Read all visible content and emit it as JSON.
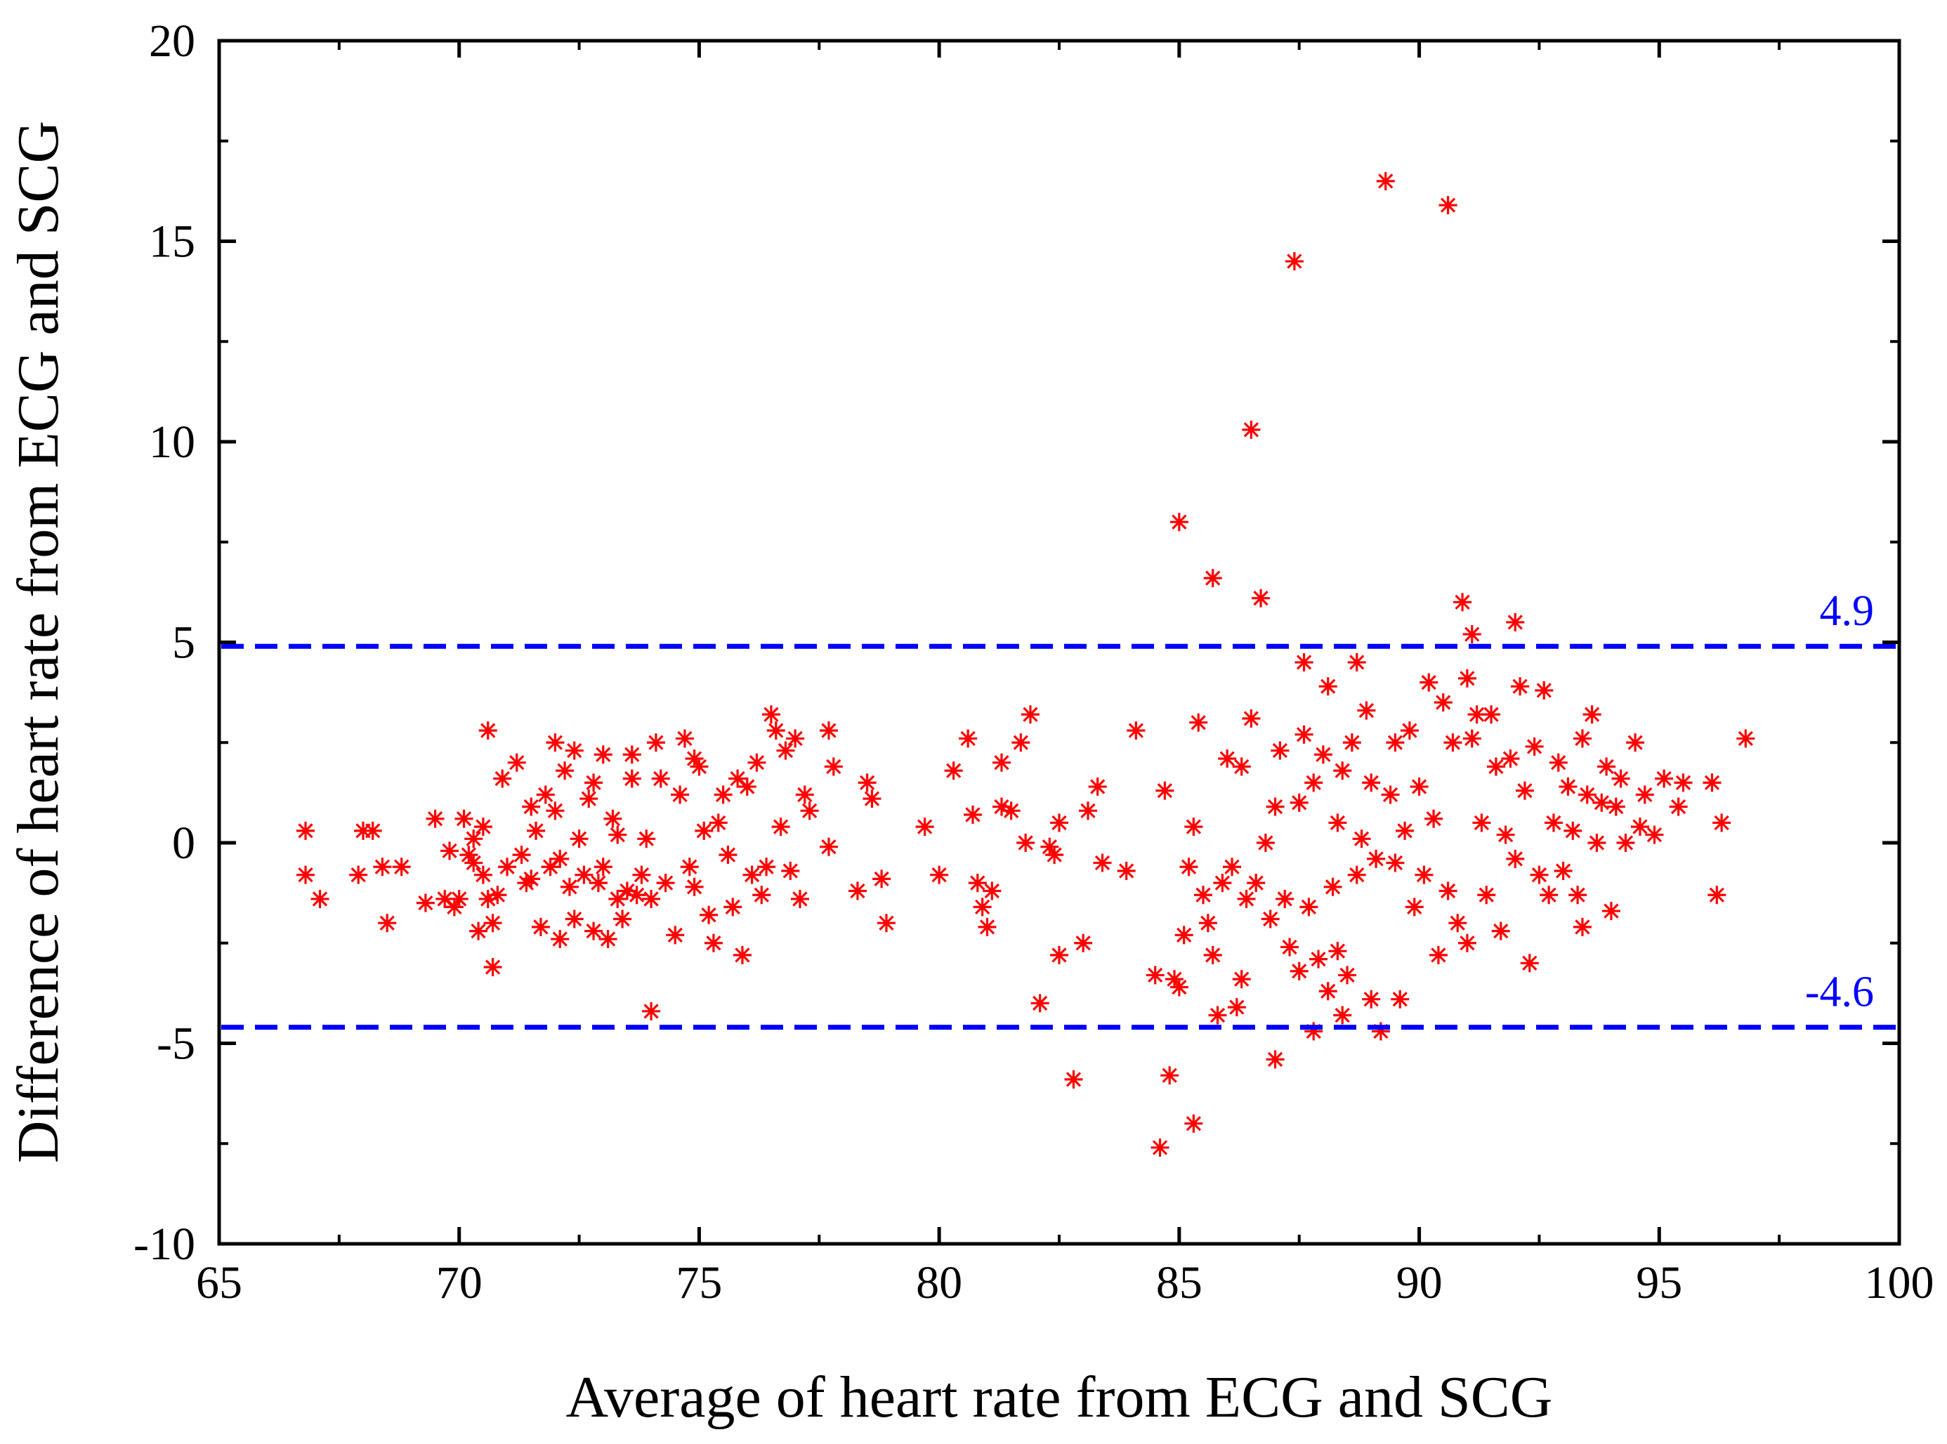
{
  "chart_data": {
    "type": "scatter",
    "title": "",
    "xlabel": "Average of heart rate from ECG and SCG",
    "ylabel": "Difference of heart rate from ECG and SCG",
    "xlim": [
      65,
      100
    ],
    "ylim": [
      -10,
      20
    ],
    "xticks": [
      65,
      70,
      75,
      80,
      85,
      90,
      95,
      100
    ],
    "yticks": [
      -10,
      -5,
      0,
      5,
      10,
      15,
      20
    ],
    "marker": "asterisk",
    "colors": {
      "points": "#ff0000",
      "limits": "#0000ff",
      "axes": "#000000"
    },
    "reference_lines": [
      {
        "name": "upper-limit",
        "y": 4.9,
        "label": "4.9",
        "style": "dashed"
      },
      {
        "name": "lower-limit",
        "y": -4.6,
        "label": "-4.6",
        "style": "dashed"
      }
    ],
    "series": [
      {
        "name": "differences",
        "points": [
          [
            66.8,
            0.3
          ],
          [
            66.8,
            -0.8
          ],
          [
            67.1,
            -1.4
          ],
          [
            67.9,
            -0.8
          ],
          [
            68.0,
            0.3
          ],
          [
            68.2,
            0.3
          ],
          [
            68.4,
            -0.6
          ],
          [
            68.5,
            -2.0
          ],
          [
            68.8,
            -0.6
          ],
          [
            69.3,
            -1.5
          ],
          [
            69.5,
            0.6
          ],
          [
            69.7,
            -1.4
          ],
          [
            69.8,
            -0.2
          ],
          [
            69.9,
            -1.6
          ],
          [
            70.0,
            -1.4
          ],
          [
            70.1,
            0.6
          ],
          [
            70.2,
            -0.3
          ],
          [
            70.3,
            -0.5
          ],
          [
            70.3,
            0.1
          ],
          [
            70.4,
            -2.2
          ],
          [
            70.5,
            -0.8
          ],
          [
            70.5,
            0.4
          ],
          [
            70.6,
            -1.4
          ],
          [
            70.6,
            2.8
          ],
          [
            70.7,
            -2.0
          ],
          [
            70.7,
            -3.1
          ],
          [
            70.8,
            -1.3
          ],
          [
            70.9,
            1.6
          ],
          [
            71.0,
            -0.6
          ],
          [
            71.2,
            2.0
          ],
          [
            71.3,
            -0.3
          ],
          [
            71.4,
            -1.0
          ],
          [
            71.5,
            -0.9
          ],
          [
            71.5,
            0.9
          ],
          [
            71.6,
            0.3
          ],
          [
            71.7,
            -2.1
          ],
          [
            71.8,
            1.2
          ],
          [
            71.9,
            -0.6
          ],
          [
            72.0,
            0.8
          ],
          [
            72.0,
            2.5
          ],
          [
            72.1,
            -2.4
          ],
          [
            72.1,
            -0.4
          ],
          [
            72.2,
            1.8
          ],
          [
            72.3,
            -1.1
          ],
          [
            72.4,
            2.3
          ],
          [
            72.4,
            -1.9
          ],
          [
            72.5,
            0.1
          ],
          [
            72.6,
            -0.8
          ],
          [
            72.7,
            1.1
          ],
          [
            72.8,
            1.5
          ],
          [
            72.8,
            -2.2
          ],
          [
            72.9,
            -1.0
          ],
          [
            73.0,
            2.2
          ],
          [
            73.0,
            -0.6
          ],
          [
            73.1,
            -2.4
          ],
          [
            73.2,
            0.6
          ],
          [
            73.3,
            -1.4
          ],
          [
            73.3,
            0.2
          ],
          [
            73.4,
            -1.9
          ],
          [
            73.5,
            -1.2
          ],
          [
            73.6,
            2.2
          ],
          [
            73.6,
            1.6
          ],
          [
            73.7,
            -1.3
          ],
          [
            73.8,
            -0.8
          ],
          [
            73.9,
            0.1
          ],
          [
            74.0,
            -1.4
          ],
          [
            74.0,
            -4.2
          ],
          [
            74.1,
            2.5
          ],
          [
            74.2,
            1.6
          ],
          [
            74.3,
            -1.0
          ],
          [
            74.5,
            -2.3
          ],
          [
            74.6,
            1.2
          ],
          [
            74.7,
            2.6
          ],
          [
            74.8,
            -0.6
          ],
          [
            74.9,
            2.1
          ],
          [
            74.9,
            -1.1
          ],
          [
            75.0,
            1.9
          ],
          [
            75.1,
            0.3
          ],
          [
            75.2,
            -1.8
          ],
          [
            75.3,
            -2.5
          ],
          [
            75.4,
            0.5
          ],
          [
            75.5,
            1.2
          ],
          [
            75.6,
            -0.3
          ],
          [
            75.7,
            -1.6
          ],
          [
            75.8,
            1.6
          ],
          [
            75.9,
            -2.8
          ],
          [
            76.0,
            1.4
          ],
          [
            76.1,
            -0.8
          ],
          [
            76.2,
            2.0
          ],
          [
            76.3,
            -1.3
          ],
          [
            76.4,
            -0.6
          ],
          [
            76.5,
            3.2
          ],
          [
            76.6,
            2.8
          ],
          [
            76.7,
            0.4
          ],
          [
            76.8,
            2.3
          ],
          [
            76.9,
            -0.7
          ],
          [
            77.0,
            2.6
          ],
          [
            77.1,
            -1.4
          ],
          [
            77.2,
            1.2
          ],
          [
            77.3,
            0.8
          ],
          [
            77.7,
            2.8
          ],
          [
            77.7,
            -0.1
          ],
          [
            77.8,
            1.9
          ],
          [
            78.3,
            -1.2
          ],
          [
            78.5,
            1.5
          ],
          [
            78.6,
            1.1
          ],
          [
            78.8,
            -0.9
          ],
          [
            78.9,
            -2.0
          ],
          [
            79.7,
            0.4
          ],
          [
            80.0,
            -0.8
          ],
          [
            80.3,
            1.8
          ],
          [
            80.6,
            2.6
          ],
          [
            80.7,
            0.7
          ],
          [
            80.8,
            -1.0
          ],
          [
            80.9,
            -1.6
          ],
          [
            81.0,
            -2.1
          ],
          [
            81.1,
            -1.2
          ],
          [
            81.3,
            2.0
          ],
          [
            81.3,
            0.9
          ],
          [
            81.5,
            0.8
          ],
          [
            81.7,
            2.5
          ],
          [
            81.8,
            0.0
          ],
          [
            81.9,
            3.2
          ],
          [
            82.1,
            -4.0
          ],
          [
            82.3,
            -0.1
          ],
          [
            82.4,
            -0.3
          ],
          [
            82.5,
            0.5
          ],
          [
            82.5,
            -2.8
          ],
          [
            82.8,
            -5.9
          ],
          [
            83.0,
            -2.5
          ],
          [
            83.1,
            0.8
          ],
          [
            83.3,
            1.4
          ],
          [
            83.4,
            -0.5
          ],
          [
            83.9,
            -0.7
          ],
          [
            84.1,
            2.8
          ],
          [
            84.5,
            -3.3
          ],
          [
            84.6,
            -7.6
          ],
          [
            84.7,
            1.3
          ],
          [
            84.8,
            -5.8
          ],
          [
            84.9,
            -3.4
          ],
          [
            85.0,
            -3.6
          ],
          [
            85.0,
            8.0
          ],
          [
            85.1,
            -2.3
          ],
          [
            85.2,
            -0.6
          ],
          [
            85.3,
            0.4
          ],
          [
            85.3,
            -7.0
          ],
          [
            85.4,
            3.0
          ],
          [
            85.5,
            -1.3
          ],
          [
            85.6,
            -2.0
          ],
          [
            85.7,
            6.6
          ],
          [
            85.7,
            -2.8
          ],
          [
            85.8,
            -4.3
          ],
          [
            85.9,
            -1.0
          ],
          [
            86.0,
            2.1
          ],
          [
            86.1,
            -0.6
          ],
          [
            86.2,
            -4.1
          ],
          [
            86.3,
            1.9
          ],
          [
            86.3,
            -3.4
          ],
          [
            86.4,
            -1.4
          ],
          [
            86.5,
            10.3
          ],
          [
            86.5,
            3.1
          ],
          [
            86.6,
            -1.0
          ],
          [
            86.7,
            6.1
          ],
          [
            86.8,
            0.0
          ],
          [
            86.9,
            -1.9
          ],
          [
            87.0,
            0.9
          ],
          [
            87.0,
            -5.4
          ],
          [
            87.1,
            2.3
          ],
          [
            87.2,
            -1.4
          ],
          [
            87.3,
            -2.6
          ],
          [
            87.4,
            14.5
          ],
          [
            87.5,
            1.0
          ],
          [
            87.5,
            -3.2
          ],
          [
            87.6,
            4.5
          ],
          [
            87.6,
            2.7
          ],
          [
            87.7,
            -1.6
          ],
          [
            87.8,
            -4.7
          ],
          [
            87.8,
            1.5
          ],
          [
            87.9,
            -2.9
          ],
          [
            88.0,
            2.2
          ],
          [
            88.1,
            -3.7
          ],
          [
            88.1,
            3.9
          ],
          [
            88.2,
            -1.1
          ],
          [
            88.3,
            0.5
          ],
          [
            88.3,
            -2.7
          ],
          [
            88.4,
            1.8
          ],
          [
            88.4,
            -4.3
          ],
          [
            88.5,
            -3.3
          ],
          [
            88.6,
            2.5
          ],
          [
            88.7,
            4.5
          ],
          [
            88.7,
            -0.8
          ],
          [
            88.8,
            0.1
          ],
          [
            88.9,
            3.3
          ],
          [
            89.0,
            -3.9
          ],
          [
            89.0,
            1.5
          ],
          [
            89.1,
            -0.4
          ],
          [
            89.2,
            -4.7
          ],
          [
            89.3,
            16.5
          ],
          [
            89.4,
            1.2
          ],
          [
            89.5,
            -0.5
          ],
          [
            89.5,
            2.5
          ],
          [
            89.6,
            -3.9
          ],
          [
            89.7,
            0.3
          ],
          [
            89.8,
            2.8
          ],
          [
            89.9,
            -1.6
          ],
          [
            90.0,
            1.4
          ],
          [
            90.1,
            -0.8
          ],
          [
            90.2,
            4.0
          ],
          [
            90.3,
            0.6
          ],
          [
            90.4,
            -2.8
          ],
          [
            90.5,
            3.5
          ],
          [
            90.6,
            15.9
          ],
          [
            90.6,
            -1.2
          ],
          [
            90.7,
            2.5
          ],
          [
            90.8,
            -2.0
          ],
          [
            90.9,
            6.0
          ],
          [
            91.0,
            4.1
          ],
          [
            91.0,
            -2.5
          ],
          [
            91.1,
            2.6
          ],
          [
            91.1,
            5.2
          ],
          [
            91.2,
            3.2
          ],
          [
            91.3,
            0.5
          ],
          [
            91.4,
            -1.3
          ],
          [
            91.5,
            3.2
          ],
          [
            91.6,
            1.9
          ],
          [
            91.7,
            -2.2
          ],
          [
            91.8,
            0.2
          ],
          [
            91.9,
            2.1
          ],
          [
            92.0,
            5.5
          ],
          [
            92.0,
            -0.4
          ],
          [
            92.1,
            3.9
          ],
          [
            92.2,
            1.3
          ],
          [
            92.3,
            -3.0
          ],
          [
            92.4,
            2.4
          ],
          [
            92.5,
            -0.8
          ],
          [
            92.6,
            3.8
          ],
          [
            92.7,
            -1.3
          ],
          [
            92.8,
            0.5
          ],
          [
            92.9,
            2.0
          ],
          [
            93.0,
            -0.7
          ],
          [
            93.1,
            1.4
          ],
          [
            93.2,
            0.3
          ],
          [
            93.3,
            -1.3
          ],
          [
            93.4,
            2.6
          ],
          [
            93.4,
            -2.1
          ],
          [
            93.5,
            1.2
          ],
          [
            93.6,
            3.2
          ],
          [
            93.7,
            0.0
          ],
          [
            93.8,
            1.0
          ],
          [
            93.9,
            1.9
          ],
          [
            94.0,
            -1.7
          ],
          [
            94.1,
            0.9
          ],
          [
            94.2,
            1.6
          ],
          [
            94.3,
            0.0
          ],
          [
            94.5,
            2.5
          ],
          [
            94.6,
            0.4
          ],
          [
            94.7,
            1.2
          ],
          [
            94.9,
            0.2
          ],
          [
            95.1,
            1.6
          ],
          [
            95.4,
            0.9
          ],
          [
            95.5,
            1.5
          ],
          [
            96.1,
            1.5
          ],
          [
            96.2,
            -1.3
          ],
          [
            96.3,
            0.5
          ],
          [
            96.8,
            2.6
          ]
        ]
      }
    ]
  }
}
